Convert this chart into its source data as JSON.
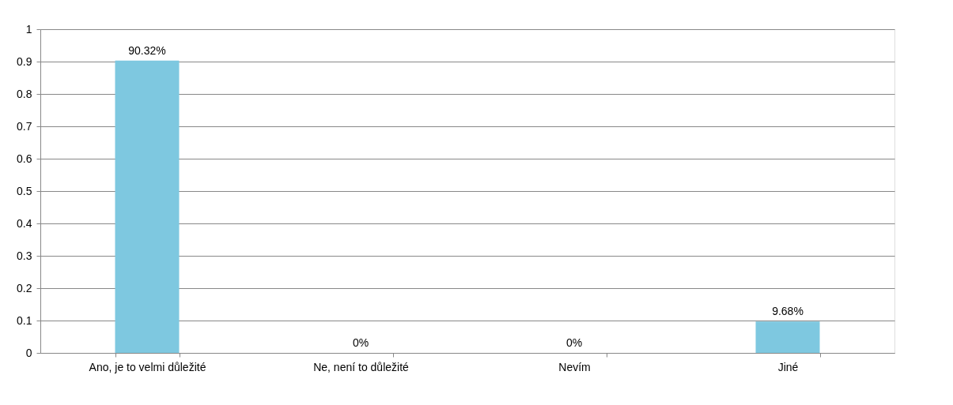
{
  "chart_data": {
    "type": "bar",
    "categories": [
      "Ano, je to velmi důležité",
      "Ne, není to důležité",
      "Nevím",
      "Jiné"
    ],
    "values": [
      0.9032,
      0,
      0,
      0.0968
    ],
    "value_labels": [
      "90.32%",
      "0%",
      "0%",
      "9.68%"
    ],
    "color": "#7ec8e0",
    "ylim": [
      0,
      1
    ],
    "yticks": [
      0,
      0.1,
      0.2,
      0.3,
      0.4,
      0.5,
      0.6,
      0.7,
      0.8,
      0.9,
      1
    ],
    "grid": "y"
  }
}
